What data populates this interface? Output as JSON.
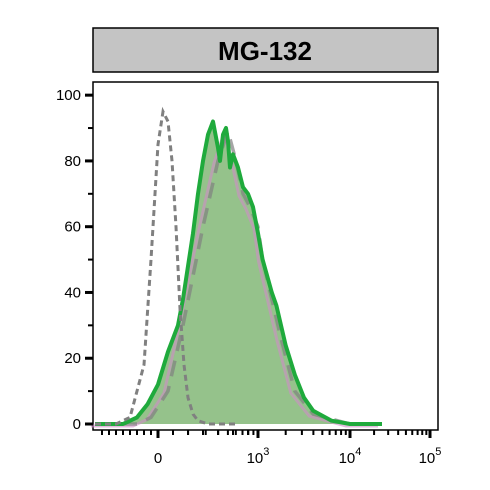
{
  "chart_data": {
    "type": "area",
    "title": "MG-132",
    "xlabel": "",
    "ylabel": "",
    "x_scale": "biexponential",
    "x_ticks": [
      {
        "base": "0",
        "exp": ""
      },
      {
        "base": "10",
        "exp": "3"
      },
      {
        "base": "10",
        "exp": "4"
      },
      {
        "base": "10",
        "exp": "5"
      }
    ],
    "y_ticks": [
      "0",
      "20",
      "40",
      "60",
      "80",
      "100"
    ],
    "ylim": [
      0,
      100
    ],
    "grid": false,
    "colors": {
      "panel_header": "#c4c4c4",
      "control": "#808080",
      "treated_fill": "#8fbf85",
      "treated_line": "#1faa3c",
      "overlay": "#d08cc8"
    },
    "series": [
      {
        "style": "gray-dashed",
        "x": [
          -0.9,
          -0.6,
          -0.4,
          -0.2,
          -0.1,
          0.0,
          0.05,
          0.1,
          0.14,
          0.18,
          0.22,
          0.26,
          0.3,
          0.35,
          0.4,
          0.5,
          0.6,
          0.8
        ],
        "y": [
          0,
          0,
          2,
          18,
          50,
          85,
          95,
          92,
          80,
          60,
          35,
          18,
          8,
          3,
          1,
          0,
          0,
          0
        ]
      },
      {
        "style": "gray-long-dash",
        "x": [
          -0.9,
          -0.3,
          -0.1,
          0.1,
          0.25,
          0.45,
          0.6,
          0.7,
          0.78,
          0.85,
          0.92,
          1.0,
          1.05,
          1.15,
          1.25,
          1.4,
          1.6,
          2.0,
          2.4
        ],
        "y": [
          0,
          0,
          2,
          10,
          30,
          60,
          80,
          89,
          80,
          70,
          66,
          60,
          50,
          38,
          26,
          10,
          3,
          0,
          0
        ]
      },
      {
        "style": "green-filled",
        "x": [
          -0.9,
          -0.5,
          -0.3,
          -0.15,
          0.0,
          0.1,
          0.2,
          0.25,
          0.3,
          0.35,
          0.4,
          0.45,
          0.5,
          0.55,
          0.6,
          0.62,
          0.65,
          0.68,
          0.7,
          0.72,
          0.75,
          0.8,
          0.85,
          0.9,
          0.95,
          1.0,
          1.05,
          1.1,
          1.15,
          1.2,
          1.3,
          1.4,
          1.5,
          1.6,
          1.8,
          2.0,
          2.4
        ],
        "y": [
          0,
          0,
          2,
          6,
          12,
          22,
          30,
          38,
          48,
          58,
          70,
          80,
          88,
          92,
          84,
          80,
          88,
          90,
          86,
          78,
          82,
          78,
          72,
          70,
          66,
          58,
          50,
          45,
          40,
          36,
          24,
          15,
          8,
          4,
          1,
          0,
          0
        ]
      }
    ]
  }
}
